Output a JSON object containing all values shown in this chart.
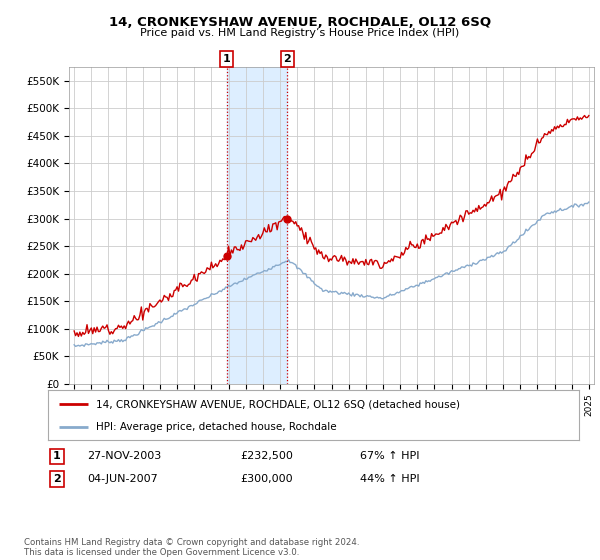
{
  "title": "14, CRONKEYSHAW AVENUE, ROCHDALE, OL12 6SQ",
  "subtitle": "Price paid vs. HM Land Registry’s House Price Index (HPI)",
  "ylabel_ticks": [
    "£0",
    "£50K",
    "£100K",
    "£150K",
    "£200K",
    "£250K",
    "£300K",
    "£350K",
    "£400K",
    "£450K",
    "£500K",
    "£550K"
  ],
  "ytick_values": [
    0,
    50000,
    100000,
    150000,
    200000,
    250000,
    300000,
    350000,
    400000,
    450000,
    500000,
    550000
  ],
  "ylim": [
    0,
    575000
  ],
  "xlim_start": 1994.7,
  "xlim_end": 2025.3,
  "sale1_date": 2003.9,
  "sale1_price": 232500,
  "sale2_date": 2007.43,
  "sale2_price": 300000,
  "legend_line1": "14, CRONKEYSHAW AVENUE, ROCHDALE, OL12 6SQ (detached house)",
  "legend_line2": "HPI: Average price, detached house, Rochdale",
  "footer": "Contains HM Land Registry data © Crown copyright and database right 2024.\nThis data is licensed under the Open Government Licence v3.0.",
  "red_color": "#cc0000",
  "blue_color": "#88aacc",
  "highlight_color": "#ddeeff",
  "grid_color": "#cccccc",
  "background_color": "#ffffff",
  "table_row1": [
    "1",
    "27-NOV-2003",
    "£232,500",
    "67% ↑ HPI"
  ],
  "table_row2": [
    "2",
    "04-JUN-2007",
    "£300,000",
    "44% ↑ HPI"
  ]
}
